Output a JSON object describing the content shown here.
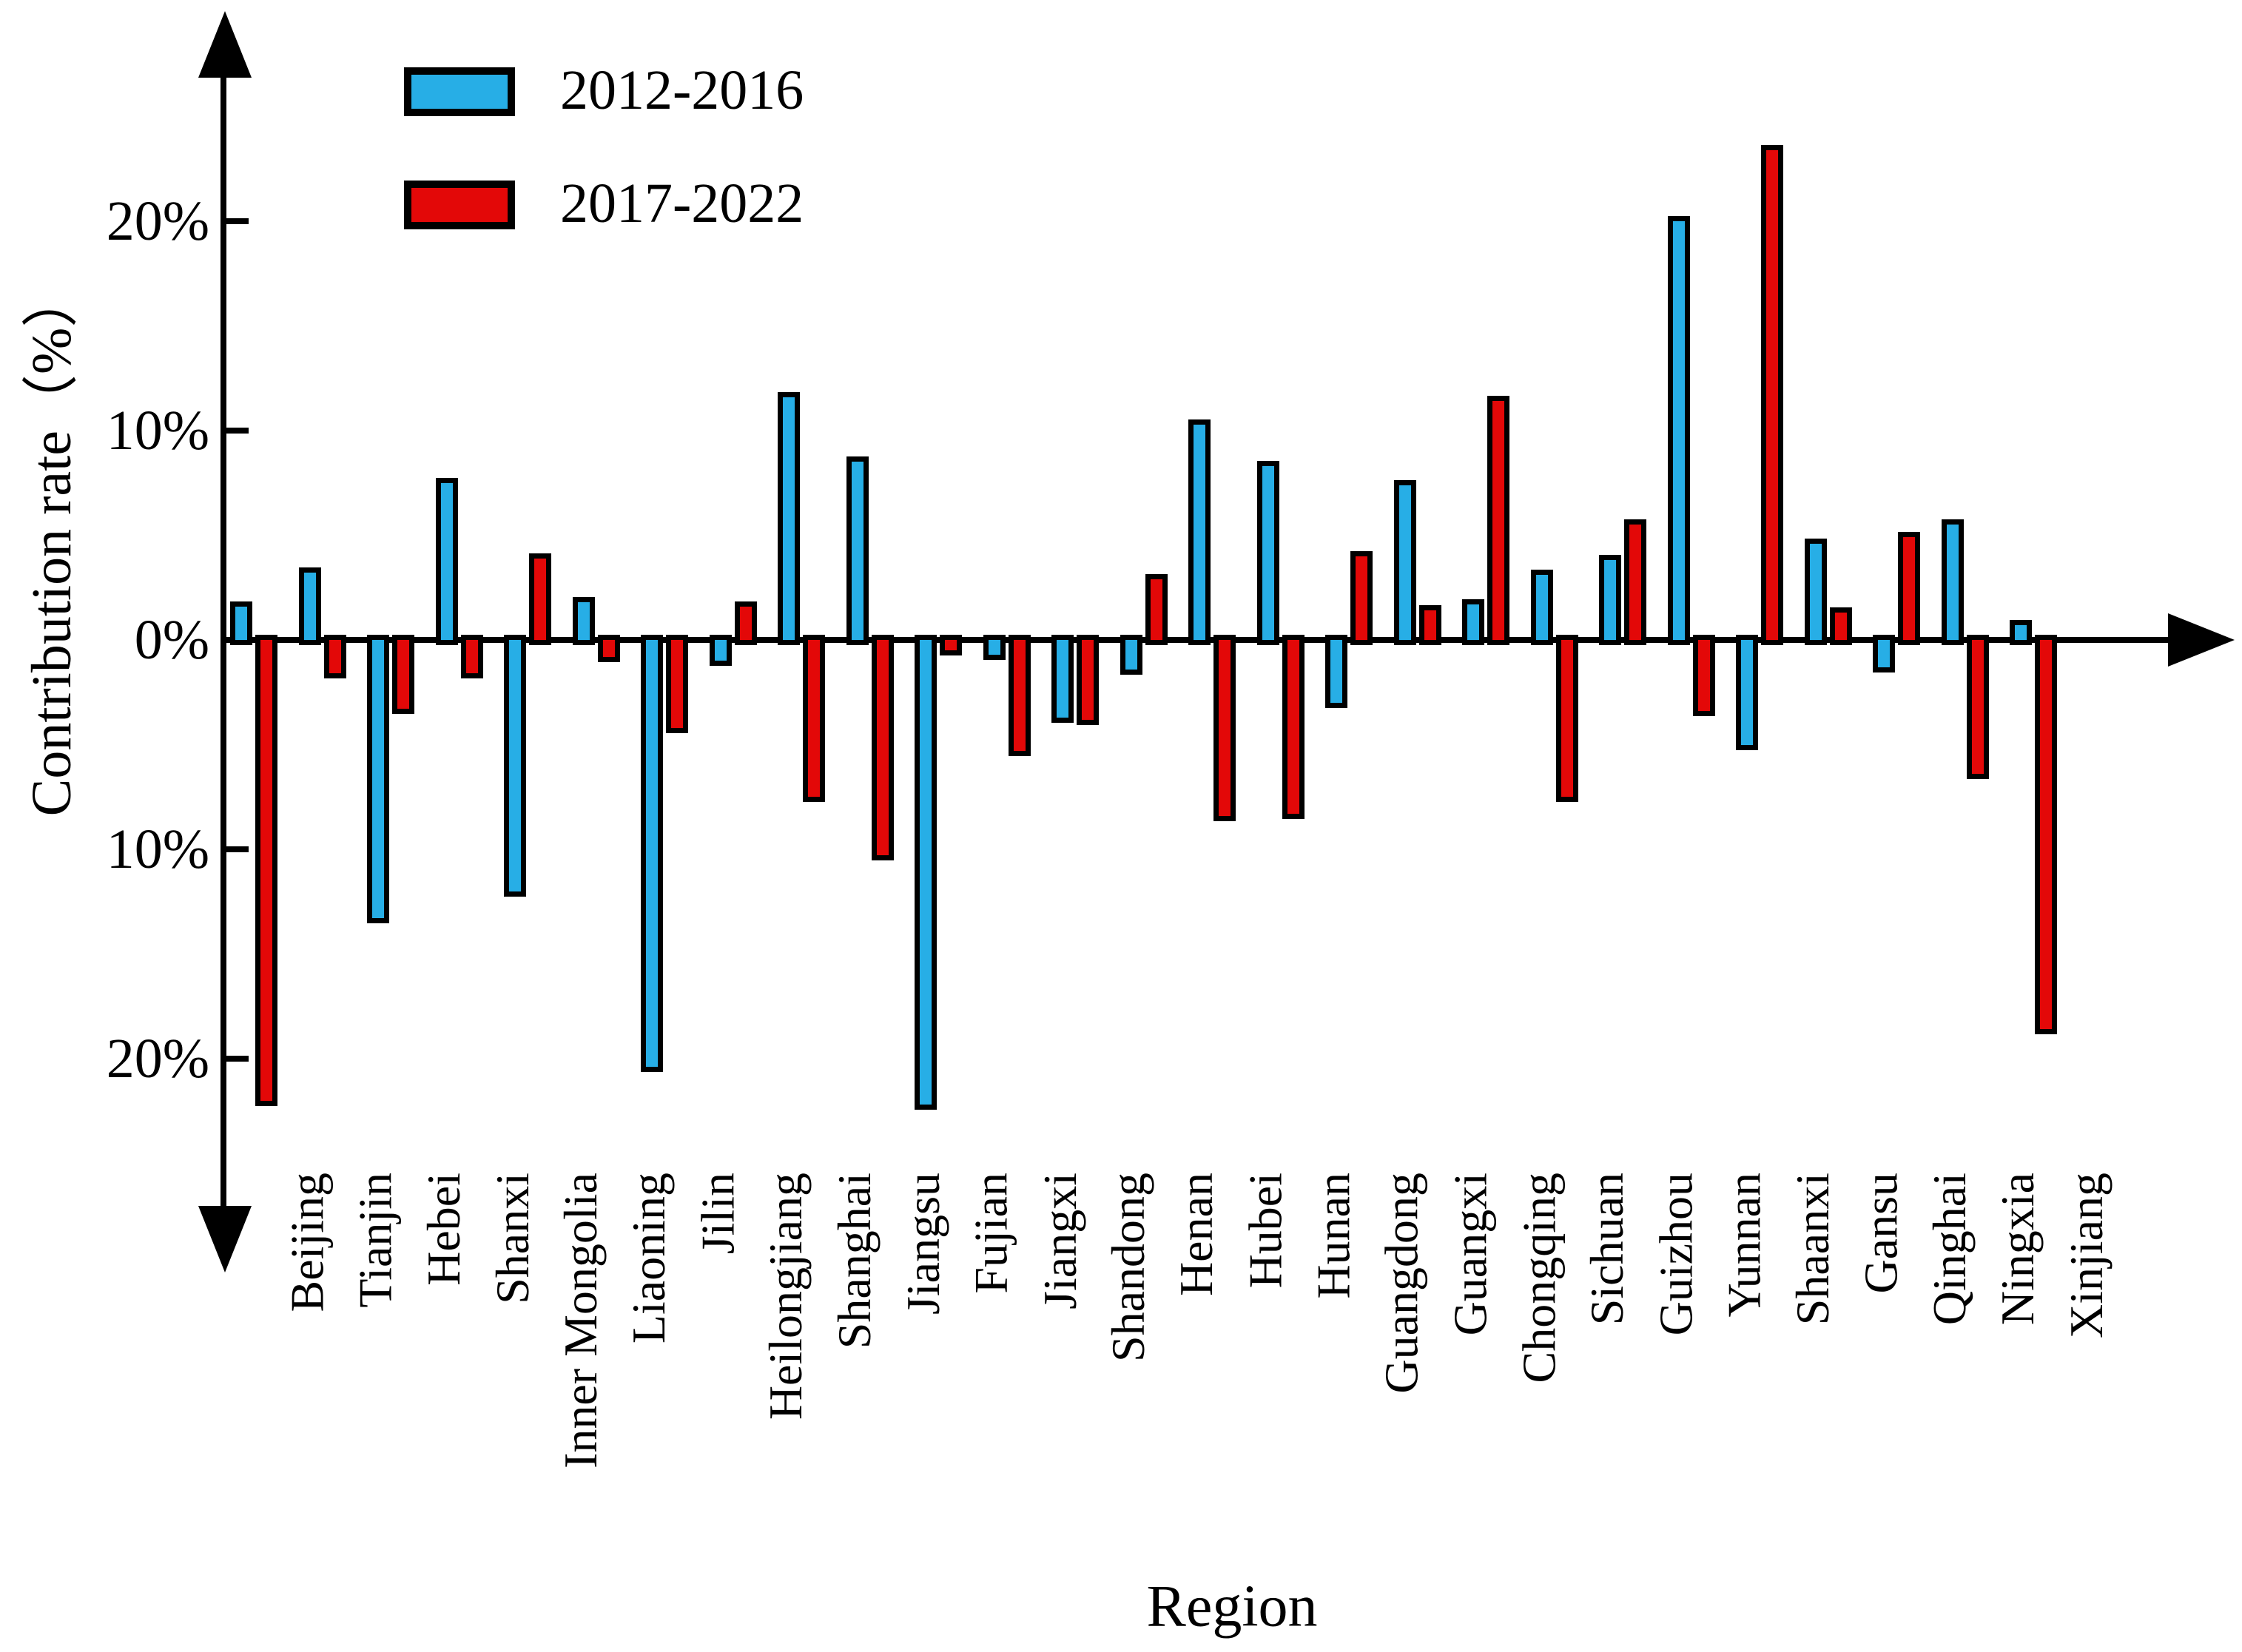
{
  "chart_data": {
    "type": "bar",
    "title": "",
    "xlabel": "Region",
    "ylabel": "Contribution rate（%）",
    "grid": false,
    "legend_position": "top-left-inside",
    "ylim": [
      -26,
      28
    ],
    "y_ticks": [
      {
        "value": 20,
        "label": "20%"
      },
      {
        "value": 10,
        "label": "10%"
      },
      {
        "value": 0,
        "label": "0%"
      },
      {
        "value": -10,
        "label": "10%"
      },
      {
        "value": -20,
        "label": "20%"
      }
    ],
    "categories": [
      "Beijing",
      "Tianjin",
      "Hebei",
      "Shanxi",
      "Inner Mongolia",
      "Liaoning",
      "Jilin",
      "Heilongjiang",
      "Shanghai",
      "Jiangsu",
      "Fujian",
      "Jiangxi",
      "Shandong",
      "Henan",
      "Hubei",
      "Hunan",
      "Guangdong",
      "Guangxi",
      "Chongqing",
      "Sichuan",
      "Guizhou",
      "Yunnan",
      "Shaanxi",
      "Gansu",
      "Qinghai",
      "Ningxia",
      "Xinjiang"
    ],
    "series": [
      {
        "name": "2012-2016",
        "color": "#27aee6",
        "values": [
          1.6,
          3.2,
          -13.3,
          7.5,
          -12.0,
          1.8,
          -20.4,
          -1.0,
          11.6,
          8.5,
          -22.2,
          -0.7,
          -3.7,
          -1.4,
          10.3,
          8.3,
          -3.0,
          7.4,
          1.7,
          3.1,
          3.8,
          20.0,
          -5.0,
          4.6,
          -1.3,
          5.5,
          0.7
        ]
      },
      {
        "name": "2017-2022",
        "color": "#e30808",
        "values": [
          -22.0,
          -1.6,
          -3.3,
          -1.6,
          3.9,
          -0.8,
          -4.2,
          1.6,
          -7.5,
          -10.3,
          -0.5,
          -5.3,
          -3.8,
          2.9,
          -8.4,
          -8.3,
          4.0,
          1.4,
          11.4,
          -7.5,
          5.5,
          -3.4,
          23.4,
          1.3,
          4.9,
          -6.4,
          -18.6
        ]
      }
    ]
  }
}
